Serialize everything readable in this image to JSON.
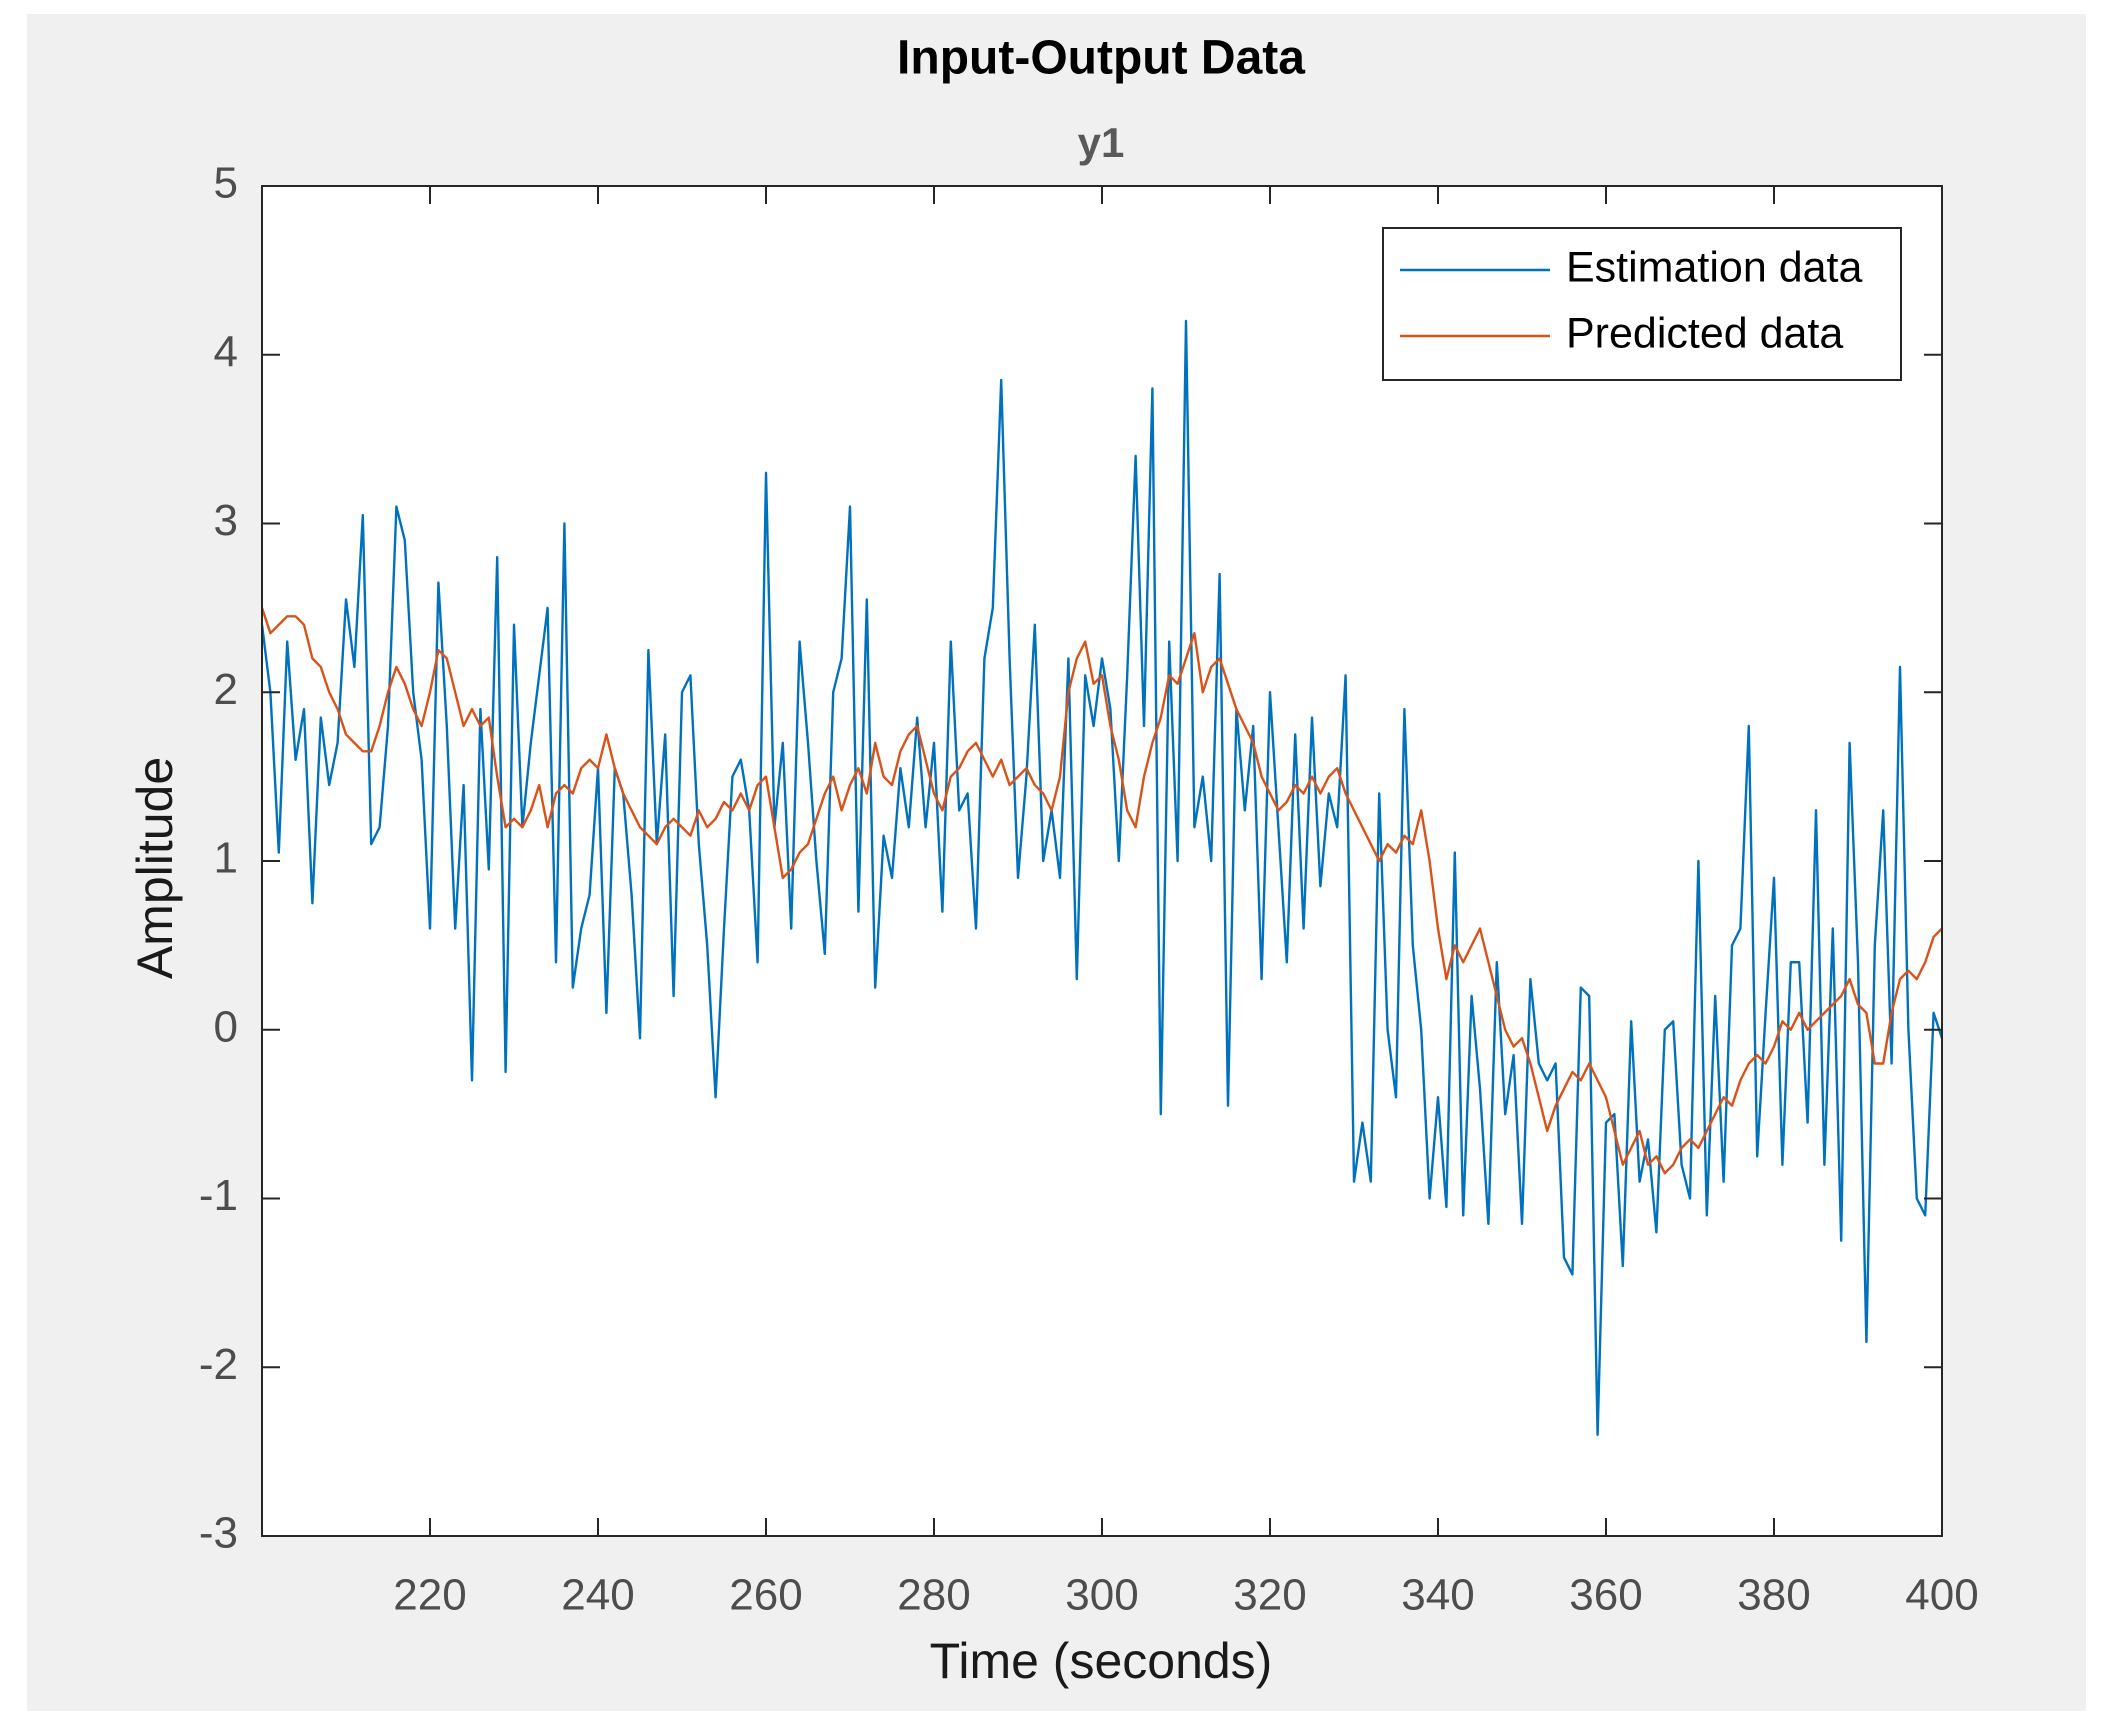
{
  "chart_data": {
    "type": "line",
    "title": "Input-Output Data",
    "subtitle": "y1",
    "x_label": "Time (seconds)",
    "y_label": "Amplitude",
    "legend": "northeast",
    "xlim": [
      200,
      400
    ],
    "ylim": [
      -3,
      5
    ],
    "xticks": [
      220,
      240,
      260,
      280,
      300,
      320,
      340,
      360,
      380,
      400
    ],
    "yticks": [
      -3,
      -2,
      -1,
      0,
      1,
      2,
      3,
      4,
      5
    ],
    "x": [
      200,
      201,
      202,
      203,
      204,
      205,
      206,
      207,
      208,
      209,
      210,
      211,
      212,
      213,
      214,
      215,
      216,
      217,
      218,
      219,
      220,
      221,
      222,
      223,
      224,
      225,
      226,
      227,
      228,
      229,
      230,
      231,
      232,
      233,
      234,
      235,
      236,
      237,
      238,
      239,
      240,
      241,
      242,
      243,
      244,
      245,
      246,
      247,
      248,
      249,
      250,
      251,
      252,
      253,
      254,
      255,
      256,
      257,
      258,
      259,
      260,
      261,
      262,
      263,
      264,
      265,
      266,
      267,
      268,
      269,
      270,
      271,
      272,
      273,
      274,
      275,
      276,
      277,
      278,
      279,
      280,
      281,
      282,
      283,
      284,
      285,
      286,
      287,
      288,
      289,
      290,
      291,
      292,
      293,
      294,
      295,
      296,
      297,
      298,
      299,
      300,
      301,
      302,
      303,
      304,
      305,
      306,
      307,
      308,
      309,
      310,
      311,
      312,
      313,
      314,
      315,
      316,
      317,
      318,
      319,
      320,
      321,
      322,
      323,
      324,
      325,
      326,
      327,
      328,
      329,
      330,
      331,
      332,
      333,
      334,
      335,
      336,
      337,
      338,
      339,
      340,
      341,
      342,
      343,
      344,
      345,
      346,
      347,
      348,
      349,
      350,
      351,
      352,
      353,
      354,
      355,
      356,
      357,
      358,
      359,
      360,
      361,
      362,
      363,
      364,
      365,
      366,
      367,
      368,
      369,
      370,
      371,
      372,
      373,
      374,
      375,
      376,
      377,
      378,
      379,
      380,
      381,
      382,
      383,
      384,
      385,
      386,
      387,
      388,
      389,
      390,
      391,
      392,
      393,
      394,
      395,
      396,
      397,
      398,
      399,
      400
    ],
    "series": [
      {
        "name": "Estimation data",
        "color": "#0072bd",
        "values": [
          2.4,
          2.0,
          1.05,
          2.3,
          1.6,
          1.9,
          0.75,
          1.85,
          1.45,
          1.7,
          2.55,
          2.15,
          3.05,
          1.1,
          1.2,
          1.8,
          3.1,
          2.9,
          2.0,
          1.6,
          0.6,
          2.65,
          1.8,
          0.6,
          1.45,
          -0.3,
          1.9,
          0.95,
          2.8,
          -0.25,
          2.4,
          1.2,
          1.7,
          2.1,
          2.5,
          0.4,
          3.0,
          0.25,
          0.6,
          0.8,
          1.55,
          0.1,
          1.55,
          1.4,
          0.8,
          -0.05,
          2.25,
          1.1,
          1.75,
          0.2,
          2.0,
          2.1,
          1.1,
          0.5,
          -0.4,
          0.6,
          1.5,
          1.6,
          1.3,
          0.4,
          3.3,
          1.2,
          1.7,
          0.6,
          2.3,
          1.7,
          1.0,
          0.45,
          2.0,
          2.2,
          3.1,
          0.7,
          2.55,
          0.25,
          1.15,
          0.9,
          1.55,
          1.2,
          1.85,
          1.2,
          1.7,
          0.7,
          2.3,
          1.3,
          1.4,
          0.6,
          2.2,
          2.5,
          3.85,
          2.2,
          0.9,
          1.5,
          2.4,
          1.0,
          1.3,
          0.9,
          2.2,
          0.3,
          2.1,
          1.8,
          2.2,
          1.9,
          1.0,
          2.1,
          3.4,
          1.8,
          3.8,
          -0.5,
          2.3,
          1.0,
          4.2,
          1.2,
          1.5,
          1.0,
          2.7,
          -0.45,
          1.9,
          1.3,
          1.8,
          0.3,
          2.0,
          1.2,
          0.4,
          1.75,
          0.6,
          1.85,
          0.85,
          1.4,
          1.2,
          2.1,
          -0.9,
          -0.55,
          -0.9,
          1.4,
          0.0,
          -0.4,
          1.9,
          0.5,
          0.0,
          -1.0,
          -0.4,
          -1.05,
          1.05,
          -1.1,
          0.2,
          -0.35,
          -1.15,
          0.4,
          -0.5,
          -0.15,
          -1.15,
          0.3,
          -0.2,
          -0.3,
          -0.2,
          -1.35,
          -1.45,
          0.25,
          0.2,
          -2.4,
          -0.55,
          -0.5,
          -1.4,
          0.05,
          -0.9,
          -0.65,
          -1.2,
          0.0,
          0.05,
          -0.8,
          -1.0,
          1.0,
          -1.1,
          0.2,
          -0.9,
          0.5,
          0.6,
          1.8,
          -0.75,
          0.1,
          0.9,
          -0.8,
          0.4,
          0.4,
          -0.55,
          1.3,
          -0.8,
          0.6,
          -1.25,
          1.7,
          0.4,
          -1.85,
          0.5,
          1.3,
          -0.2,
          2.15,
          0.0,
          -1.0,
          -1.1,
          0.1,
          -0.05
        ]
      },
      {
        "name": "Predicted data",
        "color": "#d95319",
        "values": [
          2.5,
          2.35,
          2.4,
          2.45,
          2.45,
          2.4,
          2.2,
          2.15,
          2.0,
          1.9,
          1.75,
          1.7,
          1.65,
          1.65,
          1.8,
          2.0,
          2.15,
          2.05,
          1.9,
          1.8,
          2.0,
          2.25,
          2.2,
          2.0,
          1.8,
          1.9,
          1.8,
          1.85,
          1.5,
          1.2,
          1.25,
          1.2,
          1.3,
          1.45,
          1.2,
          1.4,
          1.45,
          1.4,
          1.55,
          1.6,
          1.55,
          1.75,
          1.55,
          1.4,
          1.3,
          1.2,
          1.15,
          1.1,
          1.2,
          1.25,
          1.2,
          1.15,
          1.3,
          1.2,
          1.25,
          1.35,
          1.3,
          1.4,
          1.3,
          1.45,
          1.5,
          1.2,
          0.9,
          0.95,
          1.05,
          1.1,
          1.25,
          1.4,
          1.5,
          1.3,
          1.45,
          1.55,
          1.4,
          1.7,
          1.5,
          1.45,
          1.65,
          1.75,
          1.8,
          1.6,
          1.4,
          1.3,
          1.5,
          1.55,
          1.65,
          1.7,
          1.6,
          1.5,
          1.6,
          1.45,
          1.5,
          1.55,
          1.45,
          1.4,
          1.3,
          1.5,
          2.0,
          2.2,
          2.3,
          2.05,
          2.1,
          1.8,
          1.6,
          1.3,
          1.2,
          1.5,
          1.7,
          1.85,
          2.1,
          2.05,
          2.2,
          2.35,
          2.0,
          2.15,
          2.2,
          2.05,
          1.9,
          1.8,
          1.7,
          1.5,
          1.4,
          1.3,
          1.35,
          1.45,
          1.4,
          1.5,
          1.4,
          1.5,
          1.55,
          1.4,
          1.3,
          1.2,
          1.1,
          1.0,
          1.1,
          1.05,
          1.15,
          1.1,
          1.3,
          1.0,
          0.6,
          0.3,
          0.5,
          0.4,
          0.5,
          0.6,
          0.4,
          0.2,
          0.0,
          -0.1,
          -0.05,
          -0.2,
          -0.4,
          -0.6,
          -0.45,
          -0.35,
          -0.25,
          -0.3,
          -0.2,
          -0.3,
          -0.4,
          -0.6,
          -0.8,
          -0.7,
          -0.6,
          -0.8,
          -0.75,
          -0.85,
          -0.8,
          -0.7,
          -0.65,
          -0.7,
          -0.6,
          -0.5,
          -0.4,
          -0.45,
          -0.3,
          -0.2,
          -0.15,
          -0.2,
          -0.1,
          0.05,
          0.0,
          0.1,
          0.0,
          0.05,
          0.1,
          0.15,
          0.2,
          0.3,
          0.15,
          0.1,
          -0.2,
          -0.2,
          0.1,
          0.3,
          0.35,
          0.3,
          0.4,
          0.55,
          0.6
        ]
      }
    ]
  }
}
